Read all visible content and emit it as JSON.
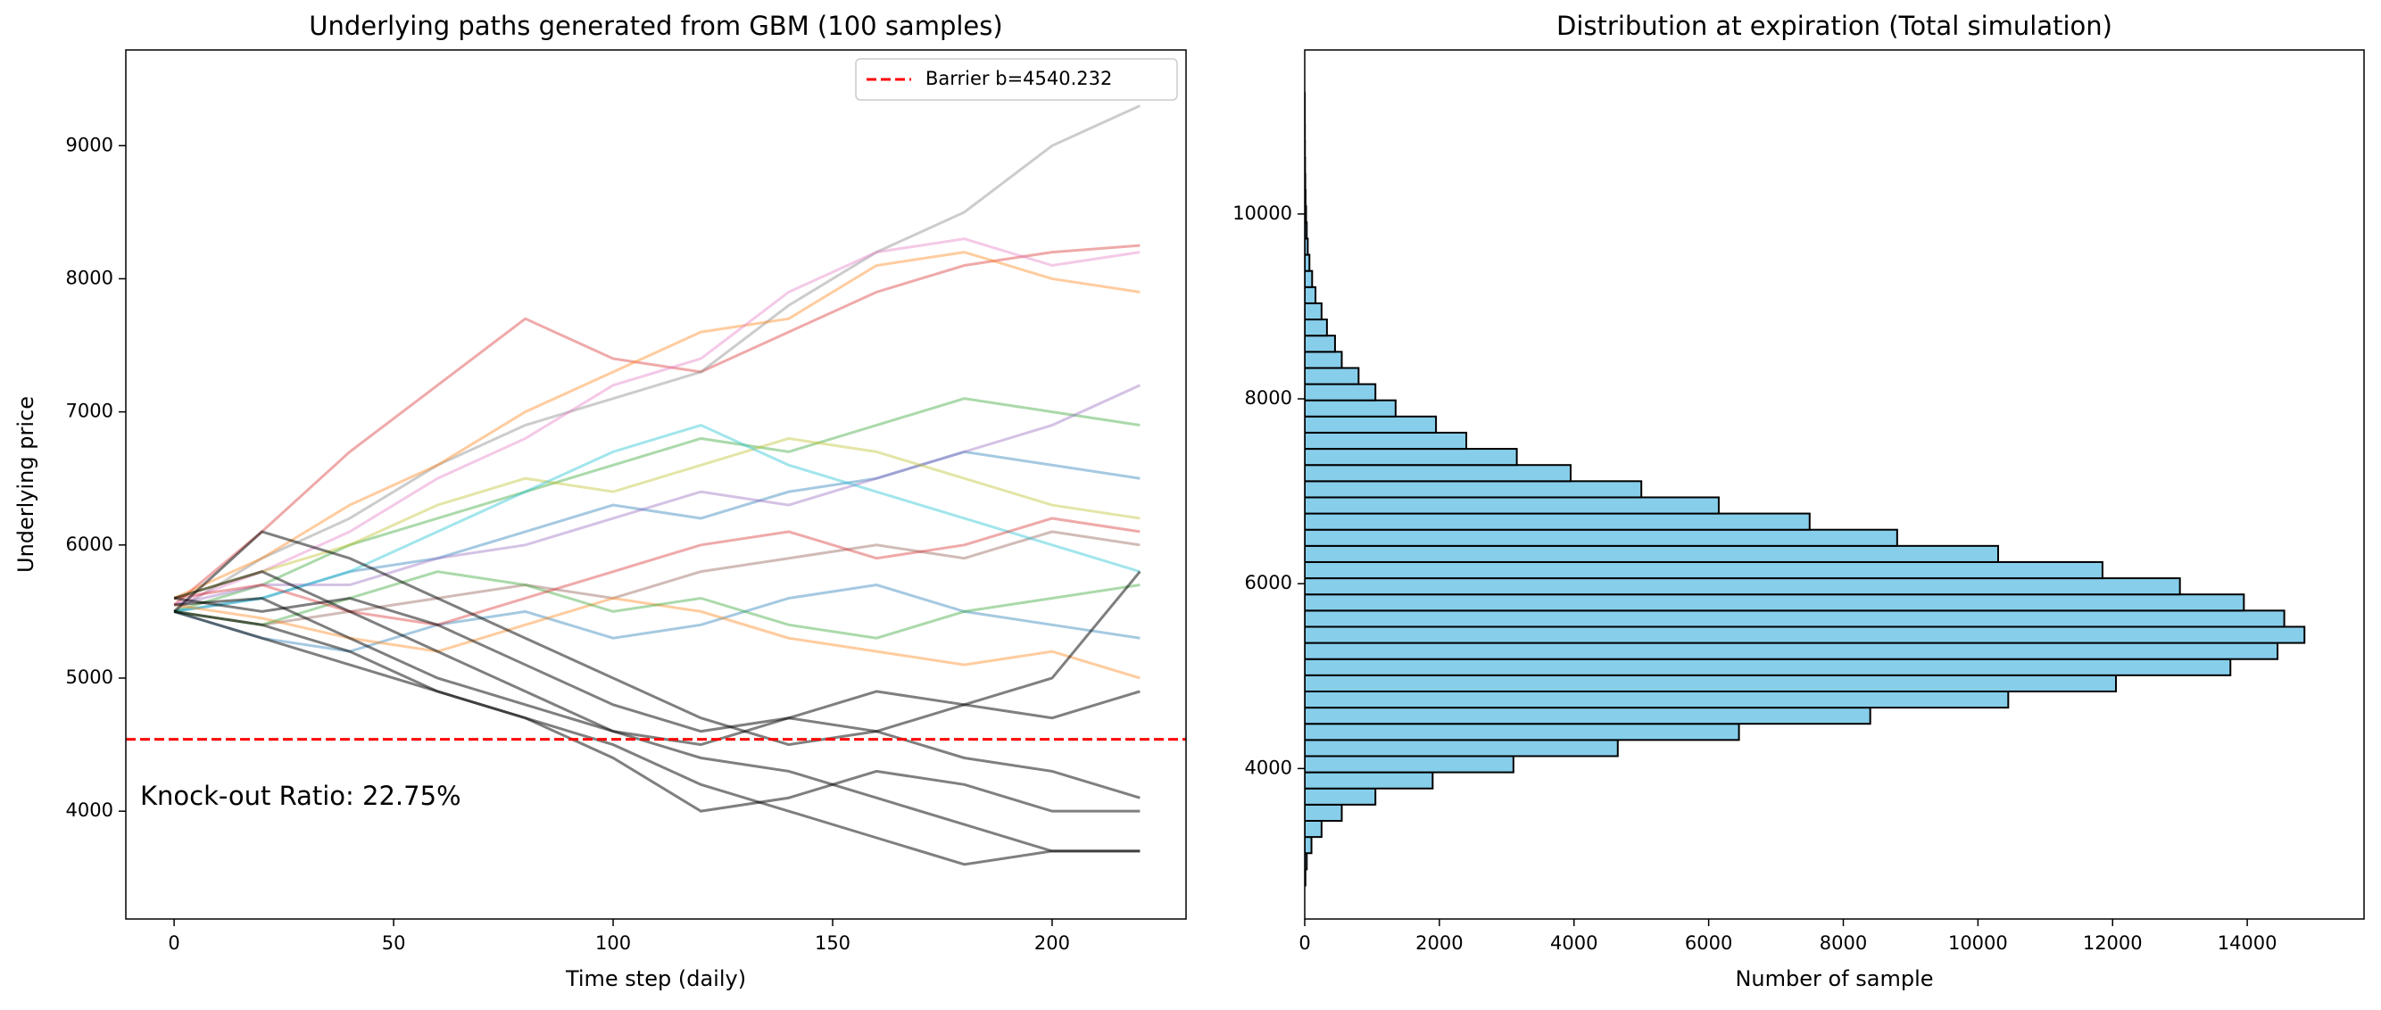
{
  "chart_data": [
    {
      "type": "line",
      "title": "Underlying paths generated from GBM (100 samples)",
      "xlabel": "Time step (daily)",
      "ylabel": "Underlying price",
      "x": [
        0,
        20,
        40,
        60,
        80,
        100,
        120,
        140,
        160,
        180,
        200,
        220
      ],
      "xlim": [
        -11,
        230.5
      ],
      "ylim": [
        3190,
        9719
      ],
      "xticks": [
        0,
        50,
        100,
        150,
        200
      ],
      "yticks": [
        4000,
        5000,
        6000,
        7000,
        8000,
        9000
      ],
      "series": [
        {
          "color": "#d62728",
          "values": [
            5550,
            6100,
            6700,
            7200,
            7700,
            7400,
            7300,
            7600,
            7900,
            8100,
            8200,
            8250
          ]
        },
        {
          "color": "#7f7f7f",
          "values": [
            5500,
            5900,
            6200,
            6600,
            6900,
            7100,
            7300,
            7800,
            8200,
            8500,
            9000,
            9300
          ]
        },
        {
          "color": "#ff7f0e",
          "values": [
            5600,
            5900,
            6300,
            6600,
            7000,
            7300,
            7600,
            7700,
            8100,
            8200,
            8000,
            7900
          ]
        },
        {
          "color": "#e377c2",
          "values": [
            5550,
            5800,
            6100,
            6500,
            6800,
            7200,
            7400,
            7900,
            8200,
            8300,
            8100,
            8200
          ]
        },
        {
          "color": "#2ca02c",
          "values": [
            5500,
            5700,
            6000,
            6200,
            6400,
            6600,
            6800,
            6700,
            6900,
            7100,
            7000,
            6900
          ]
        },
        {
          "color": "#1f77b4",
          "values": [
            5500,
            5600,
            5800,
            5900,
            6100,
            6300,
            6200,
            6400,
            6500,
            6700,
            6600,
            6500
          ]
        },
        {
          "color": "#9467bd",
          "values": [
            5550,
            5700,
            5700,
            5900,
            6000,
            6200,
            6400,
            6300,
            6500,
            6700,
            6900,
            7200
          ]
        },
        {
          "color": "#8c564b",
          "values": [
            5500,
            5400,
            5500,
            5600,
            5700,
            5600,
            5800,
            5900,
            6000,
            5900,
            6100,
            6000
          ]
        },
        {
          "color": "#bcbd22",
          "values": [
            5600,
            5800,
            6000,
            6300,
            6500,
            6400,
            6600,
            6800,
            6700,
            6500,
            6300,
            6200
          ]
        },
        {
          "color": "#17becf",
          "values": [
            5500,
            5600,
            5800,
            6100,
            6400,
            6700,
            6900,
            6600,
            6400,
            6200,
            6000,
            5800
          ]
        },
        {
          "color": "#1f77b4",
          "values": [
            5500,
            5300,
            5200,
            5400,
            5500,
            5300,
            5400,
            5600,
            5700,
            5500,
            5400,
            5300
          ]
        },
        {
          "color": "#ff7f0e",
          "values": [
            5550,
            5450,
            5300,
            5200,
            5400,
            5600,
            5500,
            5300,
            5200,
            5100,
            5200,
            5000
          ]
        },
        {
          "color": "#2ca02c",
          "values": [
            5500,
            5400,
            5600,
            5800,
            5700,
            5500,
            5600,
            5400,
            5300,
            5500,
            5600,
            5700
          ]
        },
        {
          "color": "#d62728",
          "values": [
            5600,
            5700,
            5500,
            5400,
            5600,
            5800,
            6000,
            6100,
            5900,
            6000,
            6200,
            6100
          ]
        },
        {
          "color": "#000000",
          "values": [
            5600,
            5800,
            5500,
            5200,
            4900,
            4600,
            4400,
            4300,
            4100,
            3900,
            3700,
            3700
          ]
        },
        {
          "color": "#000000",
          "values": [
            5500,
            5300,
            5100,
            4900,
            4700,
            4500,
            4200,
            4000,
            3800,
            3600,
            3700,
            3700
          ]
        },
        {
          "color": "#000000",
          "values": [
            5550,
            5600,
            5300,
            5000,
            4800,
            4600,
            4500,
            4700,
            4600,
            4400,
            4300,
            4100
          ]
        },
        {
          "color": "#000000",
          "values": [
            5500,
            5400,
            5200,
            4900,
            4700,
            4400,
            4000,
            4100,
            4300,
            4200,
            4000,
            4000
          ]
        },
        {
          "color": "#000000",
          "values": [
            5600,
            5500,
            5600,
            5400,
            5100,
            4800,
            4600,
            4700,
            4900,
            4800,
            4700,
            4900
          ]
        },
        {
          "color": "#000000",
          "values": [
            5500,
            6100,
            5900,
            5600,
            5300,
            5000,
            4700,
            4500,
            4600,
            4800,
            5000,
            5800
          ]
        }
      ],
      "barrier": {
        "value": 4540.232,
        "label": "Barrier b=4540.232",
        "color": "#ff0000"
      },
      "legend": "upper right",
      "annotation": "Knock-out Ratio: 22.75%"
    },
    {
      "type": "histogram",
      "orientation": "horizontal",
      "title": "Distribution at expiration (Total simulation)",
      "xlabel": "Number of sample",
      "color": "#87ceeb",
      "bins": [
        2734,
        2909,
        3084,
        3259,
        3434,
        3609,
        3784,
        3959,
        4134,
        4309,
        4484,
        4659,
        4834,
        5009,
        5184,
        5359,
        5534,
        5709,
        5884,
        6059,
        6234,
        6409,
        6584,
        6759,
        6934,
        7109,
        7284,
        7459,
        7634,
        7809,
        7984,
        8159,
        8334,
        8509,
        8684,
        8859,
        9034,
        9209,
        9384,
        9559,
        9734,
        9909,
        10084,
        10259,
        10434,
        10609,
        10784,
        10959,
        11134,
        11309
      ],
      "values": [
        10,
        30,
        100,
        250,
        550,
        1050,
        1900,
        3100,
        4650,
        6450,
        8400,
        10450,
        12050,
        13750,
        14450,
        14850,
        14550,
        13950,
        13000,
        11850,
        10300,
        8800,
        7500,
        6150,
        5000,
        3950,
        3150,
        2400,
        1950,
        1350,
        1050,
        800,
        550,
        450,
        330,
        250,
        160,
        110,
        70,
        45,
        30,
        20,
        12,
        8,
        5,
        3,
        2,
        1,
        1
      ],
      "xlim": [
        0,
        15735
      ],
      "ylim": [
        2372,
        11775
      ],
      "xticks": [
        0,
        2000,
        4000,
        6000,
        8000,
        10000,
        12000,
        14000
      ],
      "yticks": [
        4000,
        6000,
        8000,
        10000
      ]
    }
  ]
}
